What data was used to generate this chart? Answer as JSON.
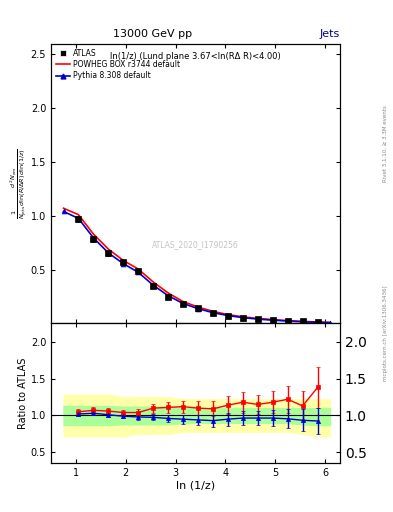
{
  "title_top": "13000 GeV pp",
  "title_right": "Jets",
  "inner_title": "ln(1/z) (Lund plane 3.67<ln(RΔ R)<4.00)",
  "right_label_top": "Rivet 3.1.10, ≥ 3.3M events",
  "right_label_bottom": "mcplots.cern.ch [arXiv:1306.3436]",
  "watermark": "ATLAS_2020_I1790256",
  "xlabel": "ln (1/z)",
  "ylabel_ratio": "Ratio to ATLAS",
  "xlim": [
    0.5,
    6.3
  ],
  "ylim_main": [
    0.0,
    2.6
  ],
  "ylim_ratio": [
    0.35,
    2.25
  ],
  "yticks_main": [
    0.5,
    1.0,
    1.5,
    2.0,
    2.5
  ],
  "yticks_ratio": [
    0.5,
    1.0,
    1.5,
    2.0
  ],
  "data_x": [
    1.05,
    1.35,
    1.65,
    1.95,
    2.25,
    2.55,
    2.85,
    3.15,
    3.45,
    3.75,
    4.05,
    4.35,
    4.65,
    4.95,
    5.25,
    5.55,
    5.85
  ],
  "data_y": [
    0.97,
    0.78,
    0.65,
    0.57,
    0.49,
    0.35,
    0.25,
    0.18,
    0.14,
    0.1,
    0.07,
    0.05,
    0.04,
    0.03,
    0.02,
    0.02,
    0.015
  ],
  "data_yerr": [
    0.03,
    0.02,
    0.02,
    0.02,
    0.02,
    0.015,
    0.012,
    0.01,
    0.008,
    0.006,
    0.005,
    0.004,
    0.003,
    0.003,
    0.002,
    0.002,
    0.002
  ],
  "powheg_x": [
    0.75,
    1.05,
    1.35,
    1.65,
    1.95,
    2.25,
    2.55,
    2.85,
    3.15,
    3.45,
    3.75,
    4.05,
    4.35,
    4.65,
    4.95,
    5.25,
    5.55,
    5.85,
    6.1
  ],
  "powheg_y": [
    1.07,
    1.01,
    0.83,
    0.69,
    0.585,
    0.505,
    0.385,
    0.283,
    0.203,
    0.152,
    0.112,
    0.082,
    0.061,
    0.046,
    0.036,
    0.026,
    0.019,
    0.013,
    0.009
  ],
  "pythia_x": [
    0.75,
    1.05,
    1.35,
    1.65,
    1.95,
    2.25,
    2.55,
    2.85,
    3.15,
    3.45,
    3.75,
    4.05,
    4.35,
    4.65,
    4.95,
    5.25,
    5.55,
    5.85,
    6.1
  ],
  "pythia_y": [
    1.04,
    0.975,
    0.795,
    0.655,
    0.555,
    0.475,
    0.355,
    0.258,
    0.185,
    0.137,
    0.1,
    0.073,
    0.054,
    0.04,
    0.03,
    0.022,
    0.015,
    0.01,
    0.007
  ],
  "ratio_x": [
    1.05,
    1.35,
    1.65,
    1.95,
    2.25,
    2.55,
    2.85,
    3.15,
    3.45,
    3.75,
    4.05,
    4.35,
    4.65,
    4.95,
    5.25,
    5.55,
    5.85
  ],
  "ratio_powheg": [
    1.05,
    1.07,
    1.06,
    1.04,
    1.04,
    1.1,
    1.11,
    1.12,
    1.1,
    1.09,
    1.14,
    1.18,
    1.15,
    1.18,
    1.22,
    1.13,
    1.38
  ],
  "ratio_powheg_err": [
    0.04,
    0.04,
    0.04,
    0.04,
    0.05,
    0.06,
    0.07,
    0.08,
    0.09,
    0.1,
    0.12,
    0.14,
    0.13,
    0.15,
    0.18,
    0.2,
    0.28
  ],
  "ratio_pythia": [
    1.02,
    1.03,
    1.01,
    0.99,
    0.98,
    0.975,
    0.96,
    0.95,
    0.94,
    0.93,
    0.95,
    0.965,
    0.965,
    0.965,
    0.955,
    0.935,
    0.925
  ],
  "ratio_pythia_err": [
    0.03,
    0.03,
    0.03,
    0.03,
    0.04,
    0.04,
    0.05,
    0.06,
    0.07,
    0.08,
    0.09,
    0.1,
    0.1,
    0.11,
    0.13,
    0.15,
    0.18
  ],
  "band_x": [
    0.75,
    1.05,
    1.35,
    1.65,
    1.95,
    2.25,
    2.55,
    2.85,
    3.15,
    3.45,
    3.75,
    4.05,
    4.35,
    4.65,
    4.95,
    5.25,
    5.55,
    5.85,
    6.1
  ],
  "band_yellow_lo": [
    0.72,
    0.72,
    0.72,
    0.72,
    0.72,
    0.75,
    0.75,
    0.75,
    0.78,
    0.78,
    0.78,
    0.78,
    0.78,
    0.78,
    0.78,
    0.78,
    0.75,
    0.72,
    0.72
  ],
  "band_yellow_hi": [
    1.28,
    1.28,
    1.28,
    1.28,
    1.25,
    1.25,
    1.25,
    1.25,
    1.22,
    1.22,
    1.22,
    1.22,
    1.22,
    1.22,
    1.22,
    1.22,
    1.22,
    1.22,
    1.22
  ],
  "band_green_lo": [
    0.87,
    0.87,
    0.87,
    0.87,
    0.88,
    0.88,
    0.88,
    0.88,
    0.9,
    0.9,
    0.9,
    0.9,
    0.9,
    0.9,
    0.9,
    0.9,
    0.88,
    0.87,
    0.87
  ],
  "band_green_hi": [
    1.13,
    1.13,
    1.13,
    1.13,
    1.12,
    1.12,
    1.12,
    1.12,
    1.1,
    1.1,
    1.1,
    1.1,
    1.1,
    1.1,
    1.1,
    1.1,
    1.1,
    1.1,
    1.1
  ],
  "color_atlas": "#000000",
  "color_powheg": "#ff0000",
  "color_pythia": "#0000cc",
  "color_yellow": "#ffffaa",
  "color_green": "#aaff99"
}
